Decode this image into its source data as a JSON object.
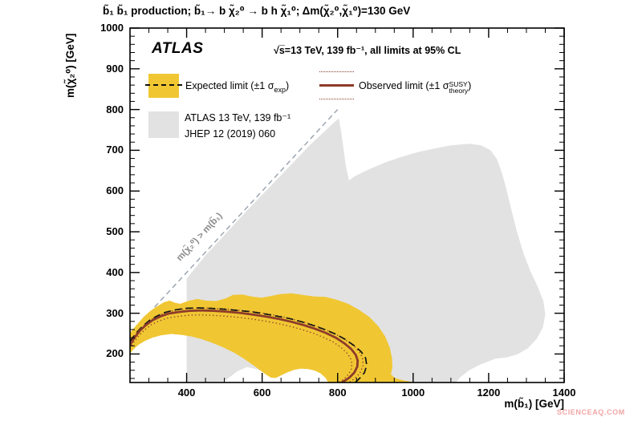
{
  "title": "b̃₁ b̃₁ production;  b̃₁→ b χ̃₂⁰ → b h χ̃₁⁰;  Δm(χ̃₂⁰,χ̃₁⁰)=130 GeV",
  "watermark": {
    "text": "SCIENCEAQ.COM",
    "color": "#F2A6A6"
  },
  "plot": {
    "experiment": "ATLAS",
    "conditions": "√s̅=13 TeV, 139 fb⁻¹, all limits at 95% CL",
    "xlabel": "m(b̃₁) [GeV]",
    "ylabel": "m(χ̃₂⁰) [GeV]",
    "forbidden_label": "m(χ̃₂⁰) > m(b̃₁)",
    "legend": {
      "expected_label_main": "Expected limit (±1 σ",
      "expected_label_sub": "exp",
      "expected_label_close": ")",
      "observed_label_main": "Observed limit (±1 σ",
      "observed_label_sup": "SUSY",
      "observed_label_sub": "theory",
      "observed_label_close": ")",
      "previous_line1": "ATLAS 13 TeV, 139 fb⁻¹",
      "previous_line2": "JHEP 12 (2019) 060"
    }
  },
  "chart_data": {
    "type": "line",
    "title": "Sbottom pair production exclusion limits, bh + missing energy channel",
    "xlabel": "m(b1) [GeV]",
    "ylabel": "m(chi2_0) [GeV]",
    "xlim": [
      250,
      1400
    ],
    "ylim": [
      130,
      1000
    ],
    "x_ticks": [
      400,
      600,
      800,
      1000,
      1200,
      1400
    ],
    "x_minor_step": 50,
    "y_ticks": [
      200,
      300,
      400,
      500,
      600,
      700,
      800,
      900,
      1000
    ],
    "y_minor_step": 20,
    "grid": false,
    "legend_position": "top-left-inside",
    "colors": {
      "expected_band": "#F0C733",
      "previous_excluded": "#E2E2E3",
      "observed": "#8E3B2A",
      "expected": "#141414",
      "diagonal": "#97A1AC",
      "frame": "#000000"
    },
    "regions": [
      {
        "name": "previous-exclusion",
        "label": "ATLAS 13 TeV, 139 fb-1, JHEP 12 (2019) 060",
        "fill": "#E2E2E3",
        "layer": "back",
        "points": [
          [
            400,
            130
          ],
          [
            400,
            385
          ],
          [
            415,
            402
          ],
          [
            450,
            442
          ],
          [
            500,
            492
          ],
          [
            560,
            552
          ],
          [
            620,
            610
          ],
          [
            680,
            668
          ],
          [
            730,
            716
          ],
          [
            765,
            746
          ],
          [
            790,
            768
          ],
          [
            803,
            778
          ],
          [
            810,
            742
          ],
          [
            816,
            700
          ],
          [
            822,
            660
          ],
          [
            830,
            626
          ],
          [
            845,
            636
          ],
          [
            880,
            652
          ],
          [
            925,
            670
          ],
          [
            970,
            684
          ],
          [
            1015,
            696
          ],
          [
            1060,
            705
          ],
          [
            1100,
            712
          ],
          [
            1150,
            716
          ],
          [
            1180,
            712
          ],
          [
            1205,
            700
          ],
          [
            1222,
            678
          ],
          [
            1235,
            645
          ],
          [
            1247,
            605
          ],
          [
            1260,
            555
          ],
          [
            1275,
            500
          ],
          [
            1292,
            448
          ],
          [
            1310,
            404
          ],
          [
            1330,
            365
          ],
          [
            1345,
            330
          ],
          [
            1350,
            298
          ],
          [
            1344,
            266
          ],
          [
            1328,
            238
          ],
          [
            1304,
            214
          ],
          [
            1276,
            199
          ],
          [
            1245,
            191
          ],
          [
            1220,
            189
          ],
          [
            1180,
            175
          ],
          [
            1148,
            160
          ],
          [
            1125,
            143
          ],
          [
            1113,
            130
          ],
          [
            955,
            130
          ],
          [
            935,
            142
          ],
          [
            905,
            153
          ],
          [
            868,
            162
          ],
          [
            820,
            169
          ],
          [
            770,
            172
          ],
          [
            722,
            170
          ],
          [
            680,
            167
          ],
          [
            645,
            158
          ],
          [
            612,
            152
          ],
          [
            585,
            163
          ],
          [
            560,
            168
          ],
          [
            535,
            158
          ],
          [
            510,
            140
          ],
          [
            497,
            130
          ]
        ]
      },
      {
        "name": "expected-band",
        "label": "Expected limit ±1 sigma_exp band",
        "fill": "#F0C733",
        "layer": "front",
        "points": [
          [
            250,
            252
          ],
          [
            268,
            272
          ],
          [
            286,
            291
          ],
          [
            303,
            305
          ],
          [
            320,
            316
          ],
          [
            340,
            327
          ],
          [
            355,
            331
          ],
          [
            368,
            326
          ],
          [
            383,
            323
          ],
          [
            403,
            330
          ],
          [
            428,
            335
          ],
          [
            452,
            331
          ],
          [
            478,
            330
          ],
          [
            503,
            336
          ],
          [
            523,
            345
          ],
          [
            548,
            346
          ],
          [
            572,
            341
          ],
          [
            598,
            338
          ],
          [
            622,
            342
          ],
          [
            648,
            347
          ],
          [
            678,
            349
          ],
          [
            708,
            345
          ],
          [
            738,
            341
          ],
          [
            768,
            340
          ],
          [
            798,
            333
          ],
          [
            828,
            323
          ],
          [
            856,
            309
          ],
          [
            884,
            291
          ],
          [
            908,
            268
          ],
          [
            926,
            243
          ],
          [
            938,
            216
          ],
          [
            944,
            190
          ],
          [
            945,
            166
          ],
          [
            941,
            150
          ],
          [
            952,
            141
          ],
          [
            975,
            135
          ],
          [
            1000,
            131
          ],
          [
            1008,
            130
          ],
          [
            775,
            130
          ],
          [
            768,
            141
          ],
          [
            755,
            152
          ],
          [
            740,
            159
          ],
          [
            722,
            163
          ],
          [
            703,
            164
          ],
          [
            684,
            161
          ],
          [
            665,
            154
          ],
          [
            649,
            147
          ],
          [
            636,
            141
          ],
          [
            623,
            142
          ],
          [
            609,
            150
          ],
          [
            592,
            162
          ],
          [
            571,
            176
          ],
          [
            549,
            190
          ],
          [
            524,
            204
          ],
          [
            497,
            216
          ],
          [
            469,
            227
          ],
          [
            441,
            236
          ],
          [
            413,
            243
          ],
          [
            386,
            247
          ],
          [
            359,
            249
          ],
          [
            333,
            246
          ],
          [
            309,
            240
          ],
          [
            289,
            232
          ],
          [
            272,
            222
          ],
          [
            260,
            212
          ],
          [
            252,
            203
          ],
          [
            250,
            200
          ]
        ]
      }
    ],
    "series": [
      {
        "name": "kinematic-diagonal",
        "label": "m(chi2_0) = m(b1)",
        "style": "dash",
        "color": "#97A1AC",
        "width": 1.4,
        "layer": "back",
        "points": [
          [
            315,
            315
          ],
          [
            800,
            800
          ]
        ]
      },
      {
        "name": "observed-plus-1sigma-theory",
        "label": "Observed +1 sigma_theory",
        "style": "dotted",
        "color": "#8E3B2A",
        "width": 1.3,
        "layer": "front",
        "points": [
          [
            250,
            230
          ],
          [
            268,
            252
          ],
          [
            287,
            270
          ],
          [
            307,
            285
          ],
          [
            329,
            296
          ],
          [
            353,
            304
          ],
          [
            380,
            309
          ],
          [
            410,
            312
          ],
          [
            443,
            313
          ],
          [
            477,
            312
          ],
          [
            512,
            310
          ],
          [
            547,
            307
          ],
          [
            582,
            303
          ],
          [
            617,
            298
          ],
          [
            652,
            292
          ],
          [
            686,
            284
          ],
          [
            718,
            276
          ],
          [
            748,
            267
          ],
          [
            777,
            256
          ],
          [
            804,
            244
          ],
          [
            827,
            231
          ],
          [
            846,
            217
          ],
          [
            860,
            202
          ],
          [
            867,
            186
          ],
          [
            867,
            170
          ],
          [
            859,
            153
          ],
          [
            846,
            140
          ],
          [
            833,
            132
          ],
          [
            827,
            130
          ]
        ]
      },
      {
        "name": "observed-minus-1sigma-theory",
        "label": "Observed -1 sigma_theory",
        "style": "dotted",
        "color": "#8E3B2A",
        "width": 1.3,
        "layer": "front",
        "points": [
          [
            250,
            213
          ],
          [
            261,
            230
          ],
          [
            274,
            246
          ],
          [
            290,
            260
          ],
          [
            307,
            272
          ],
          [
            327,
            281
          ],
          [
            349,
            288
          ],
          [
            375,
            292
          ],
          [
            404,
            295
          ],
          [
            436,
            296
          ],
          [
            468,
            295
          ],
          [
            501,
            293
          ],
          [
            536,
            290
          ],
          [
            571,
            286
          ],
          [
            606,
            281
          ],
          [
            641,
            275
          ],
          [
            674,
            268
          ],
          [
            706,
            260
          ],
          [
            735,
            251
          ],
          [
            762,
            241
          ],
          [
            787,
            230
          ],
          [
            808,
            217
          ],
          [
            824,
            203
          ],
          [
            834,
            190
          ],
          [
            838,
            176
          ],
          [
            836,
            162
          ],
          [
            828,
            149
          ],
          [
            816,
            138
          ],
          [
            806,
            132
          ],
          [
            800,
            130
          ]
        ]
      },
      {
        "name": "expected-limit",
        "label": "Expected limit",
        "style": "dashed",
        "color": "#141414",
        "width": 1.7,
        "layer": "front",
        "points": [
          [
            250,
            231
          ],
          [
            266,
            251
          ],
          [
            283,
            268
          ],
          [
            301,
            282
          ],
          [
            321,
            293
          ],
          [
            343,
            302
          ],
          [
            368,
            308
          ],
          [
            397,
            312
          ],
          [
            429,
            313
          ],
          [
            463,
            312
          ],
          [
            498,
            310
          ],
          [
            533,
            307
          ],
          [
            568,
            304
          ],
          [
            603,
            299
          ],
          [
            638,
            293
          ],
          [
            672,
            287
          ],
          [
            705,
            279
          ],
          [
            736,
            270
          ],
          [
            766,
            260
          ],
          [
            794,
            249
          ],
          [
            820,
            236
          ],
          [
            843,
            221
          ],
          [
            862,
            206
          ],
          [
            874,
            190
          ],
          [
            877,
            172
          ],
          [
            871,
            154
          ],
          [
            859,
            141
          ],
          [
            850,
            133
          ],
          [
            846,
            130
          ]
        ]
      },
      {
        "name": "observed-limit",
        "label": "Observed limit",
        "style": "solid",
        "color": "#8E3B2A",
        "width": 2.8,
        "layer": "front",
        "points": [
          [
            250,
            222
          ],
          [
            262,
            240
          ],
          [
            276,
            257
          ],
          [
            292,
            271
          ],
          [
            310,
            283
          ],
          [
            330,
            292
          ],
          [
            352,
            299
          ],
          [
            378,
            303
          ],
          [
            408,
            306
          ],
          [
            440,
            307
          ],
          [
            472,
            306
          ],
          [
            505,
            304
          ],
          [
            540,
            301
          ],
          [
            575,
            297
          ],
          [
            610,
            292
          ],
          [
            645,
            286
          ],
          [
            678,
            279
          ],
          [
            710,
            271
          ],
          [
            740,
            262
          ],
          [
            768,
            252
          ],
          [
            795,
            240
          ],
          [
            818,
            226
          ],
          [
            836,
            212
          ],
          [
            848,
            198
          ],
          [
            853,
            184
          ],
          [
            852,
            169
          ],
          [
            844,
            154
          ],
          [
            831,
            142
          ],
          [
            818,
            134
          ],
          [
            810,
            130
          ]
        ]
      }
    ],
    "annotations": [
      {
        "text": "m(chi2_0) > m(b1)",
        "x": 430,
        "y": 490,
        "rotation_deg": -47,
        "color": "#8b8b8b"
      }
    ]
  }
}
